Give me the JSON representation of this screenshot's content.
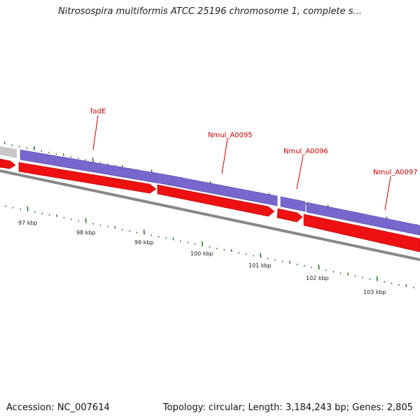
{
  "title": "Nitrosospira multiformis ATCC 25196 chromosome 1, complete s...",
  "footer": {
    "accession": "Accession: NC_007614",
    "stats": "Topology: circular; Length: 3,184,243 bp; Genes: 2,805"
  },
  "colors": {
    "forward_strand": "#7766cc",
    "reverse_strand": "#ee1111",
    "other_feature": "#c8c8c8",
    "backbone": "#888888",
    "tick": "#2a7a2a",
    "gene_label": "#cc0000"
  },
  "scale_labels": [
    "97 kbp",
    "98 kbp",
    "99 kbp",
    "100 kbp",
    "101 kbp",
    "102 kbp",
    "103 kbp"
  ],
  "gene_labels": [
    "fadE",
    "Nmul_A0095",
    "Nmul_A0096",
    "Nmul_A0097"
  ]
}
